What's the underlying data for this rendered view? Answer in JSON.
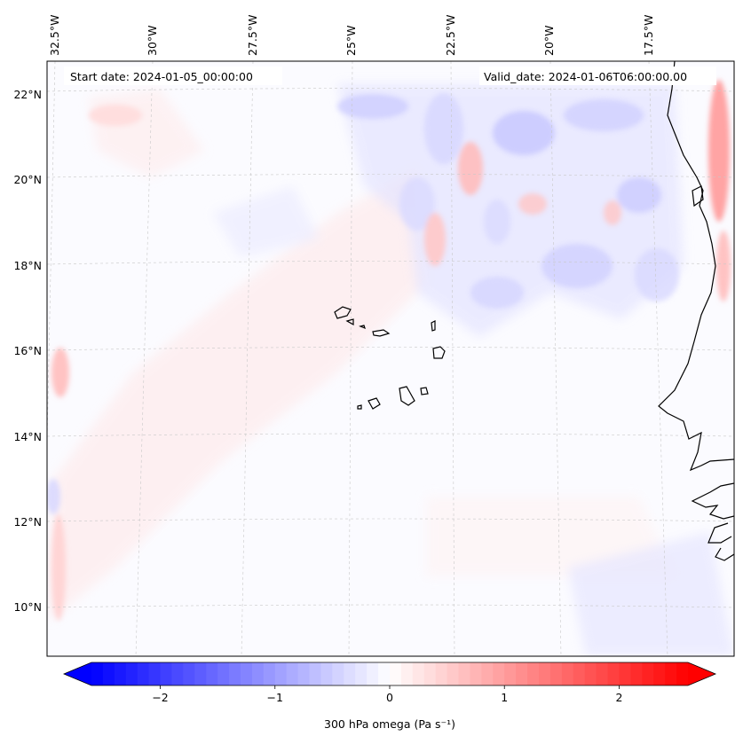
{
  "map": {
    "start_date_label": "Start date: 2024-01-05_00:00:00",
    "valid_date_label": "Valid_date: 2024-01-06T06:00:00.00",
    "lon_labels": [
      "32.5°W",
      "30°W",
      "27.5°W",
      "25°W",
      "22.5°W",
      "20°W",
      "17.5°W"
    ],
    "lat_labels": [
      "22°N",
      "20°N",
      "18°N",
      "16°N",
      "14°N",
      "12°N",
      "10°N"
    ],
    "gridlines": true,
    "coastline_color": "#000000",
    "field": "300 hPa omega"
  },
  "colorbar": {
    "label": "300 hPa omega (Pa s⁻¹)",
    "ticks": [
      "−2",
      "−1",
      "0",
      "1",
      "2"
    ],
    "tick_values": [
      -2,
      -1,
      0,
      1,
      2
    ],
    "range": [
      -2.6,
      2.6
    ],
    "colormap": "bwr",
    "low_color": "#0000ff",
    "mid_color": "#ffffff",
    "high_color": "#ff0000",
    "extend": "both"
  }
}
